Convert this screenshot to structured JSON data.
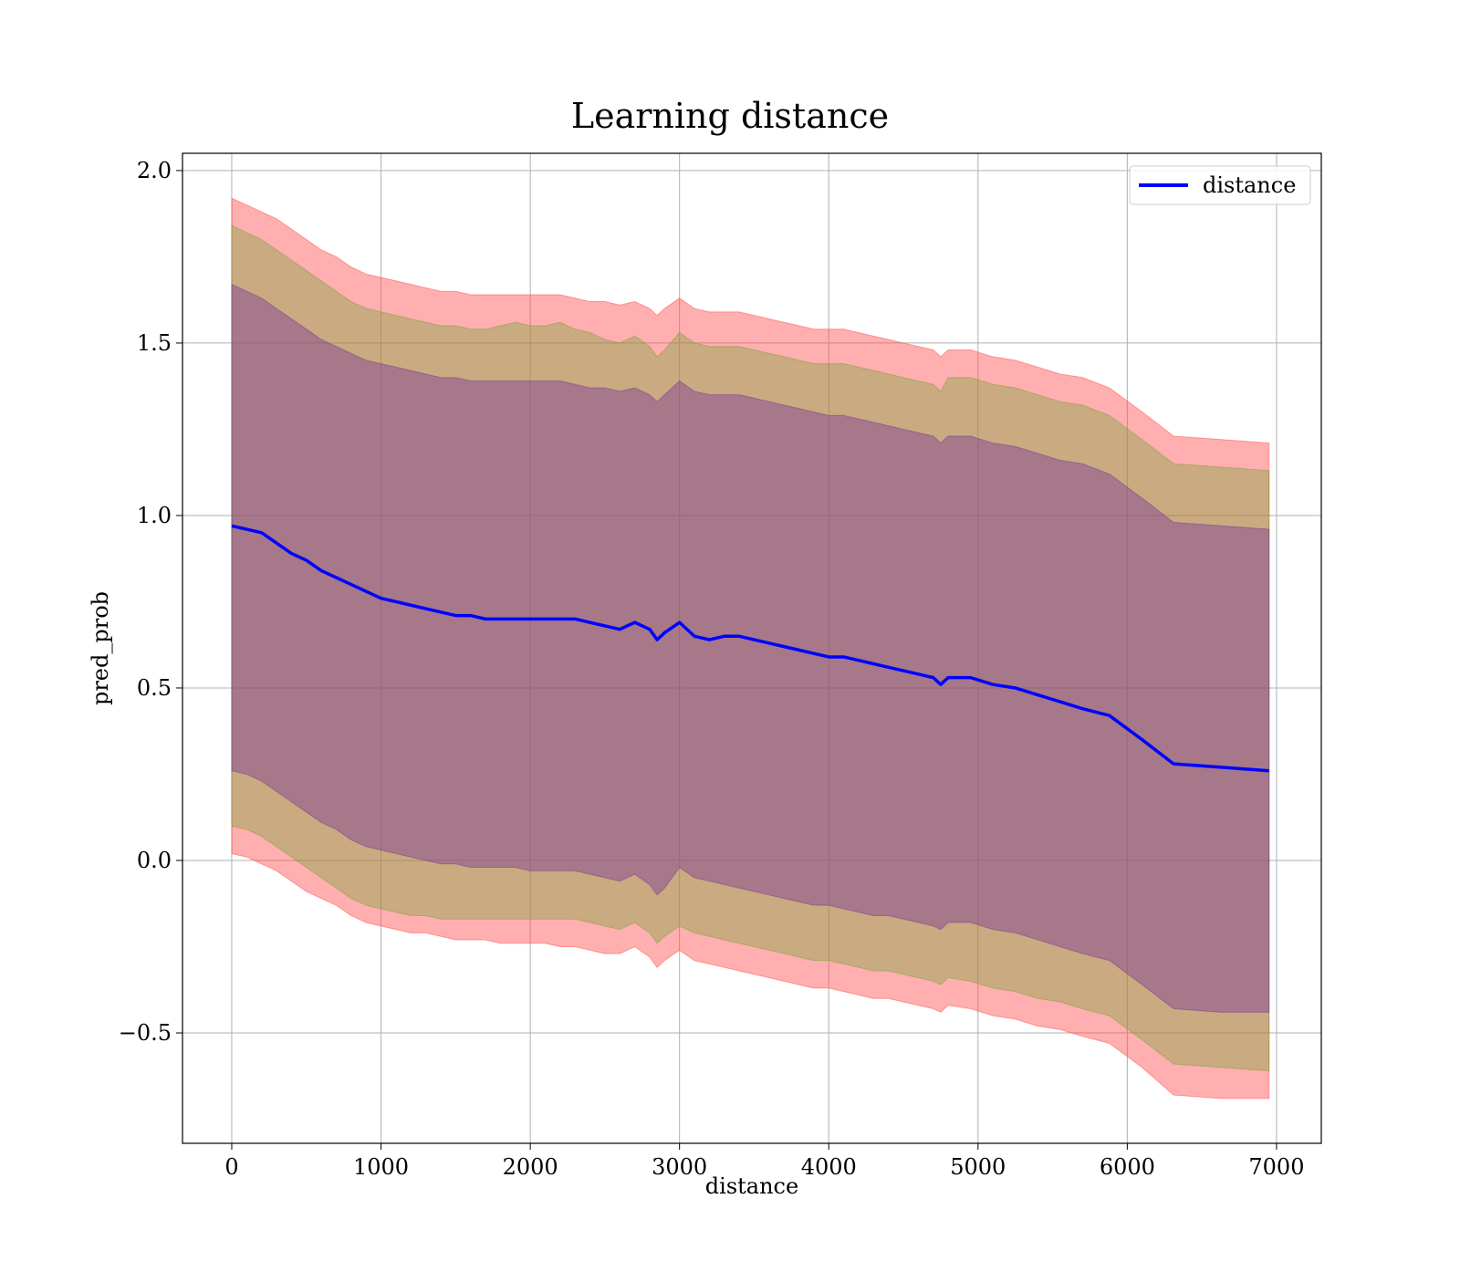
{
  "chart_data": {
    "type": "area",
    "title": "Learning distance",
    "xlabel": "distance",
    "ylabel": "pred_prob",
    "xlim": [
      -330,
      7300
    ],
    "ylim": [
      -0.82,
      2.05
    ],
    "x_ticks": [
      0,
      1000,
      2000,
      3000,
      4000,
      5000,
      6000,
      7000
    ],
    "x_tick_labels": [
      "0",
      "1000",
      "2000",
      "3000",
      "4000",
      "5000",
      "6000",
      "7000"
    ],
    "y_ticks": [
      -0.5,
      0.0,
      0.5,
      1.0,
      1.5,
      2.0
    ],
    "y_tick_labels": [
      "−0.5",
      "0.0",
      "0.5",
      "1.0",
      "1.5",
      "2.0"
    ],
    "grid": true,
    "legend_position": "top-right",
    "x": [
      0,
      100,
      200,
      300,
      400,
      500,
      600,
      700,
      800,
      900,
      1000,
      1100,
      1200,
      1300,
      1400,
      1500,
      1600,
      1700,
      1800,
      1900,
      2000,
      2100,
      2200,
      2300,
      2400,
      2500,
      2600,
      2700,
      2800,
      2850,
      2900,
      3000,
      3100,
      3200,
      3300,
      3400,
      3500,
      3600,
      3700,
      3800,
      3900,
      4000,
      4100,
      4200,
      4300,
      4400,
      4500,
      4600,
      4700,
      4750,
      4800,
      4950,
      5100,
      5250,
      5400,
      5550,
      5700,
      5880,
      6100,
      6310,
      6630,
      6950
    ],
    "series": [
      {
        "name": "distance",
        "color": "#0000ff",
        "values": [
          0.97,
          0.96,
          0.95,
          0.92,
          0.89,
          0.87,
          0.84,
          0.82,
          0.8,
          0.78,
          0.76,
          0.75,
          0.74,
          0.73,
          0.72,
          0.71,
          0.71,
          0.7,
          0.7,
          0.7,
          0.7,
          0.7,
          0.7,
          0.7,
          0.69,
          0.68,
          0.67,
          0.69,
          0.67,
          0.64,
          0.66,
          0.69,
          0.65,
          0.64,
          0.65,
          0.65,
          0.64,
          0.63,
          0.62,
          0.61,
          0.6,
          0.59,
          0.59,
          0.58,
          0.57,
          0.56,
          0.55,
          0.54,
          0.53,
          0.51,
          0.53,
          0.53,
          0.51,
          0.5,
          0.48,
          0.46,
          0.44,
          0.42,
          0.35,
          0.28,
          0.27,
          0.26
        ]
      }
    ],
    "bands": [
      {
        "color": "#ff4d4d",
        "opacity": 0.45,
        "upper": [
          1.92,
          1.9,
          1.88,
          1.86,
          1.83,
          1.8,
          1.77,
          1.75,
          1.72,
          1.7,
          1.69,
          1.68,
          1.67,
          1.66,
          1.65,
          1.65,
          1.64,
          1.64,
          1.64,
          1.64,
          1.64,
          1.64,
          1.64,
          1.63,
          1.62,
          1.62,
          1.61,
          1.62,
          1.6,
          1.58,
          1.6,
          1.63,
          1.6,
          1.59,
          1.59,
          1.59,
          1.58,
          1.57,
          1.56,
          1.55,
          1.54,
          1.54,
          1.54,
          1.53,
          1.52,
          1.51,
          1.5,
          1.49,
          1.48,
          1.46,
          1.48,
          1.48,
          1.46,
          1.45,
          1.43,
          1.41,
          1.4,
          1.37,
          1.3,
          1.23,
          1.22,
          1.21
        ],
        "lower": [
          0.02,
          0.01,
          -0.01,
          -0.03,
          -0.06,
          -0.09,
          -0.11,
          -0.13,
          -0.16,
          -0.18,
          -0.19,
          -0.2,
          -0.21,
          -0.21,
          -0.22,
          -0.23,
          -0.23,
          -0.23,
          -0.24,
          -0.24,
          -0.24,
          -0.24,
          -0.25,
          -0.25,
          -0.26,
          -0.27,
          -0.27,
          -0.25,
          -0.28,
          -0.31,
          -0.29,
          -0.26,
          -0.29,
          -0.3,
          -0.31,
          -0.32,
          -0.33,
          -0.34,
          -0.35,
          -0.36,
          -0.37,
          -0.37,
          -0.38,
          -0.39,
          -0.4,
          -0.4,
          -0.41,
          -0.42,
          -0.43,
          -0.44,
          -0.42,
          -0.43,
          -0.45,
          -0.46,
          -0.48,
          -0.49,
          -0.51,
          -0.53,
          -0.6,
          -0.68,
          -0.69,
          -0.69
        ]
      },
      {
        "color": "#7aa33a",
        "opacity": 0.4,
        "upper": [
          1.84,
          1.82,
          1.8,
          1.77,
          1.74,
          1.71,
          1.68,
          1.65,
          1.62,
          1.6,
          1.59,
          1.58,
          1.57,
          1.56,
          1.55,
          1.55,
          1.54,
          1.54,
          1.55,
          1.56,
          1.55,
          1.55,
          1.56,
          1.54,
          1.53,
          1.51,
          1.5,
          1.52,
          1.49,
          1.46,
          1.48,
          1.53,
          1.5,
          1.49,
          1.49,
          1.49,
          1.48,
          1.47,
          1.46,
          1.45,
          1.44,
          1.44,
          1.44,
          1.43,
          1.42,
          1.41,
          1.4,
          1.39,
          1.38,
          1.36,
          1.4,
          1.4,
          1.38,
          1.37,
          1.35,
          1.33,
          1.32,
          1.29,
          1.22,
          1.15,
          1.14,
          1.13
        ],
        "lower": [
          0.1,
          0.09,
          0.07,
          0.04,
          0.01,
          -0.02,
          -0.05,
          -0.08,
          -0.11,
          -0.13,
          -0.14,
          -0.15,
          -0.16,
          -0.16,
          -0.17,
          -0.17,
          -0.17,
          -0.17,
          -0.17,
          -0.17,
          -0.17,
          -0.17,
          -0.17,
          -0.17,
          -0.18,
          -0.19,
          -0.2,
          -0.18,
          -0.21,
          -0.24,
          -0.22,
          -0.19,
          -0.21,
          -0.22,
          -0.23,
          -0.24,
          -0.25,
          -0.26,
          -0.27,
          -0.28,
          -0.29,
          -0.29,
          -0.3,
          -0.31,
          -0.32,
          -0.32,
          -0.33,
          -0.34,
          -0.35,
          -0.36,
          -0.34,
          -0.35,
          -0.37,
          -0.38,
          -0.4,
          -0.41,
          -0.43,
          -0.45,
          -0.52,
          -0.59,
          -0.6,
          -0.61
        ]
      },
      {
        "color": "#7a3c96",
        "opacity": 0.45,
        "upper": [
          1.67,
          1.65,
          1.63,
          1.6,
          1.57,
          1.54,
          1.51,
          1.49,
          1.47,
          1.45,
          1.44,
          1.43,
          1.42,
          1.41,
          1.4,
          1.4,
          1.39,
          1.39,
          1.39,
          1.39,
          1.39,
          1.39,
          1.39,
          1.38,
          1.37,
          1.37,
          1.36,
          1.37,
          1.35,
          1.33,
          1.35,
          1.39,
          1.36,
          1.35,
          1.35,
          1.35,
          1.34,
          1.33,
          1.32,
          1.31,
          1.3,
          1.29,
          1.29,
          1.28,
          1.27,
          1.26,
          1.25,
          1.24,
          1.23,
          1.21,
          1.23,
          1.23,
          1.21,
          1.2,
          1.18,
          1.16,
          1.15,
          1.12,
          1.05,
          0.98,
          0.97,
          0.96
        ],
        "lower": [
          0.26,
          0.25,
          0.23,
          0.2,
          0.17,
          0.14,
          0.11,
          0.09,
          0.06,
          0.04,
          0.03,
          0.02,
          0.01,
          0.0,
          -0.01,
          -0.01,
          -0.02,
          -0.02,
          -0.02,
          -0.02,
          -0.03,
          -0.03,
          -0.03,
          -0.03,
          -0.04,
          -0.05,
          -0.06,
          -0.04,
          -0.07,
          -0.1,
          -0.08,
          -0.02,
          -0.05,
          -0.06,
          -0.07,
          -0.08,
          -0.09,
          -0.1,
          -0.11,
          -0.12,
          -0.13,
          -0.13,
          -0.14,
          -0.15,
          -0.16,
          -0.16,
          -0.17,
          -0.18,
          -0.19,
          -0.2,
          -0.18,
          -0.18,
          -0.2,
          -0.21,
          -0.23,
          -0.25,
          -0.27,
          -0.29,
          -0.36,
          -0.43,
          -0.44,
          -0.44
        ]
      }
    ]
  }
}
